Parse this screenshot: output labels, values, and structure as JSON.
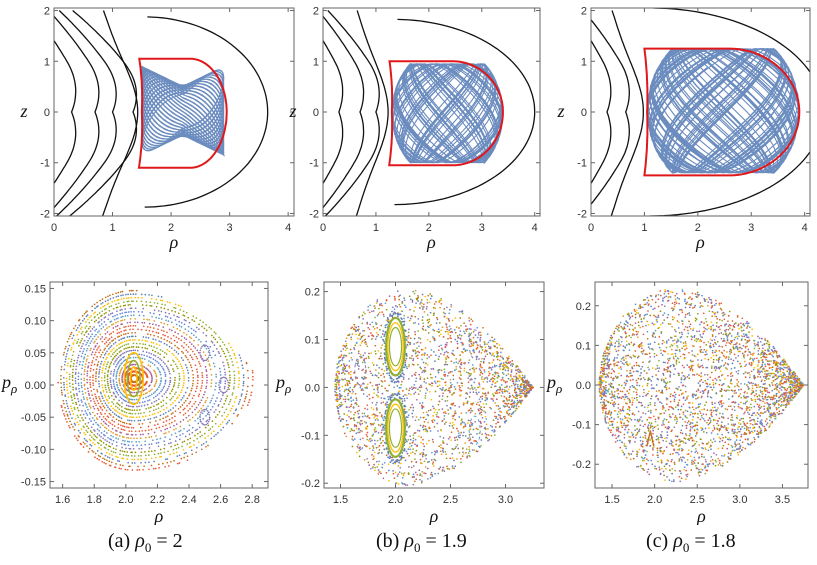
{
  "captions": [
    {
      "label": "(a) ",
      "sym": "ρ",
      "sub": "0",
      "rest": " = 2"
    },
    {
      "label": "(b) ",
      "sym": "ρ",
      "sub": "0",
      "rest": " = 1.9"
    },
    {
      "label": "(c) ",
      "sym": "ρ",
      "sub": "0",
      "rest": " = 1.8"
    }
  ],
  "colors": {
    "trajectory": "#5b7fb8",
    "boundary": "#e0181b",
    "contour": "#111111",
    "frame": "#666666",
    "section_points": [
      "#5e81b5",
      "#e19c24",
      "#8fb032",
      "#eb6235",
      "#8778b3",
      "#c56e1a",
      "#5d9ec7",
      "#ffbf00",
      "#a5609d",
      "#929600",
      "#e95536",
      "#6685d9"
    ]
  },
  "chart_data": [
    {
      "type": "line",
      "panel": "a-top",
      "xlabel": "ρ",
      "ylabel": "z",
      "xlim": [
        0,
        4.1
      ],
      "ylim": [
        -2.05,
        2.05
      ],
      "xticks": [
        "0",
        "1",
        "2",
        "3",
        "4"
      ],
      "yticks": [
        "-2",
        "-1",
        "0",
        "1",
        "2"
      ],
      "series": [
        {
          "role": "contours",
          "x_at_z0": [
            0.3,
            0.7,
            1.0,
            1.35
          ]
        },
        {
          "role": "outer-contour",
          "x_at_z0": [
            3.5
          ]
        },
        {
          "role": "boundary",
          "x_at_z0": [
            1.5,
            2.95
          ],
          "z_extent": [
            -1.1,
            1.05
          ]
        },
        {
          "role": "trajectory",
          "x_range": [
            1.5,
            2.9
          ],
          "z_range": [
            -0.85,
            0.9
          ]
        }
      ]
    },
    {
      "type": "line",
      "panel": "b-top",
      "xlabel": "ρ",
      "ylabel": "z",
      "xlim": [
        0,
        4.1
      ],
      "ylim": [
        -2.05,
        2.05
      ],
      "xticks": [
        "0",
        "1",
        "2",
        "3",
        "4"
      ],
      "yticks": [
        "-2",
        "-1",
        "0",
        "1",
        "2"
      ],
      "series": [
        {
          "role": "contours",
          "x_at_z0": [
            0.3,
            0.7,
            1.0
          ]
        },
        {
          "role": "outer-contour",
          "x_at_z0": [
            3.85
          ]
        },
        {
          "role": "boundary",
          "x_at_z0": [
            1.3,
            3.4
          ],
          "z_extent": [
            -1.05,
            1.0
          ]
        },
        {
          "role": "trajectory",
          "x_range": [
            1.3,
            3.4
          ],
          "z_range": [
            -1.0,
            0.95
          ]
        }
      ]
    },
    {
      "type": "line",
      "panel": "c-top",
      "xlabel": "ρ",
      "ylabel": "z",
      "xlim": [
        0,
        4.1
      ],
      "ylim": [
        -2.05,
        2.05
      ],
      "xticks": [
        "0",
        "1",
        "2",
        "3",
        "4"
      ],
      "yticks": [
        "-2",
        "-1",
        "0",
        "1",
        "2"
      ],
      "series": [
        {
          "role": "contours",
          "x_at_z0": [
            0.3,
            0.65
          ]
        },
        {
          "role": "outer-contour",
          "x_at_z0": [
            4.2
          ]
        },
        {
          "role": "boundary",
          "x_at_z0": [
            1.05,
            3.9
          ],
          "z_extent": [
            -1.25,
            1.25
          ]
        },
        {
          "role": "trajectory",
          "x_range": [
            1.05,
            3.9
          ],
          "z_range": [
            -1.2,
            1.25
          ]
        }
      ]
    },
    {
      "type": "scatter",
      "panel": "a-bottom",
      "xlabel": "ρ",
      "ylabel": "p_ρ",
      "xlim": [
        1.52,
        2.9
      ],
      "ylim": [
        -0.16,
        0.16
      ],
      "xticks": [
        1.6,
        1.8,
        2.0,
        2.2,
        2.4,
        2.6,
        2.8
      ],
      "yticks": [
        -0.15,
        -0.1,
        -0.05,
        0.0,
        0.05,
        0.1,
        0.15
      ],
      "xtick_labels": [
        "1.6",
        "1.8",
        "2.0",
        "2.2",
        "2.4",
        "2.6",
        "2.8"
      ],
      "ytick_labels": [
        "-0.15",
        "-0.10",
        "-0.05",
        "0.00",
        "0.05",
        "0.10",
        "0.15"
      ],
      "center": [
        2.05,
        0.0
      ],
      "rho_extent": [
        1.58,
        2.87
      ],
      "p_max": 0.145,
      "island_centers": [
        [
          2.05,
          0.01
        ]
      ],
      "structure": "nested-tori"
    },
    {
      "type": "scatter",
      "panel": "b-bottom",
      "xlabel": "ρ",
      "ylabel": "p_ρ",
      "xlim": [
        1.35,
        3.35
      ],
      "ylim": [
        -0.21,
        0.22
      ],
      "xticks": [
        1.5,
        2.0,
        2.5,
        3.0
      ],
      "yticks": [
        -0.2,
        -0.1,
        0.0,
        0.1,
        0.2
      ],
      "xtick_labels": [
        "1.5",
        "2.0",
        "2.5",
        "3.0"
      ],
      "ytick_labels": [
        "-0.2",
        "-0.1",
        "0.0",
        "0.1",
        "0.2"
      ],
      "center": [
        2.15,
        0.0
      ],
      "rho_extent": [
        1.45,
        3.25
      ],
      "p_max": 0.205,
      "island_centers": [
        [
          2.0,
          0.085
        ],
        [
          2.0,
          -0.085
        ]
      ],
      "structure": "figure-eight"
    },
    {
      "type": "scatter",
      "panel": "c-bottom",
      "xlabel": "ρ",
      "ylabel": "p_ρ",
      "xlim": [
        1.3,
        3.8
      ],
      "ylim": [
        -0.26,
        0.26
      ],
      "xticks": [
        1.5,
        2.0,
        2.5,
        3.0,
        3.5
      ],
      "yticks": [
        -0.2,
        -0.1,
        0.0,
        0.1,
        0.2
      ],
      "xtick_labels": [
        "1.5",
        "2.0",
        "2.5",
        "3.0",
        "3.5"
      ],
      "ytick_labels": [
        "-0.2",
        "-0.1",
        "0.0",
        "0.1",
        "0.2"
      ],
      "center": [
        2.3,
        0.0
      ],
      "rho_extent": [
        1.35,
        3.75
      ],
      "p_max": 0.245,
      "island_centers": [
        [
          1.95,
          -0.135
        ]
      ],
      "structure": "chaotic"
    }
  ]
}
